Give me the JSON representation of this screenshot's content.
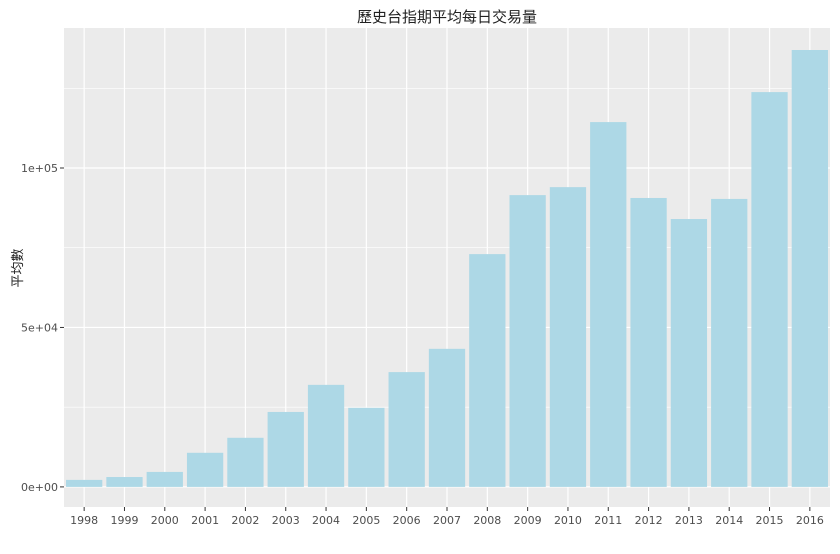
{
  "chart_data": {
    "type": "bar",
    "title": "歷史台指期平均每日交易量",
    "xlabel": "",
    "ylabel": "平均數",
    "categories": [
      "1998",
      "1999",
      "2000",
      "2001",
      "2002",
      "2003",
      "2004",
      "2005",
      "2006",
      "2007",
      "2008",
      "2009",
      "2010",
      "2011",
      "2012",
      "2013",
      "2014",
      "2015",
      "2016"
    ],
    "values": [
      2200,
      3100,
      4700,
      10700,
      15400,
      23500,
      32000,
      24800,
      36000,
      43300,
      73000,
      91500,
      94000,
      114400,
      90600,
      84000,
      90300,
      123800,
      137000
    ],
    "ylim": [
      -6300,
      143900
    ],
    "yticks": [
      0,
      50000,
      100000
    ],
    "ytick_labels": [
      "0e+00",
      "5e+04",
      "1e+05"
    ],
    "grid": true,
    "colors": {
      "bar": "#add8e6",
      "panel": "#ebebeb",
      "grid": "#ffffff"
    }
  }
}
